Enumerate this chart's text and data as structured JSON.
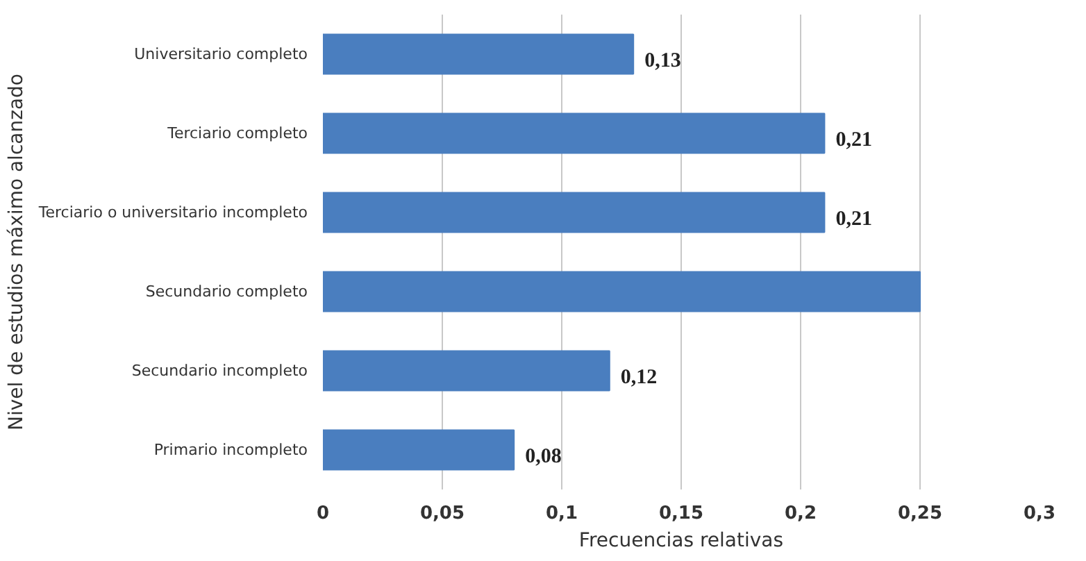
{
  "chart_data": {
    "type": "bar",
    "orientation": "horizontal",
    "xlabel": "Frecuencias relativas",
    "ylabel": "Nivel de estudios máximo alcanzado",
    "categories": [
      "Universitario completo",
      "Terciario completo",
      "Terciario o universitario incompleto",
      "Secundario completo",
      "Secundario incompleto",
      "Primario incompleto"
    ],
    "values": [
      0.13,
      0.21,
      0.21,
      0.25,
      0.12,
      0.08
    ],
    "value_labels": [
      "0,13",
      "0,21",
      "0,21",
      null,
      "0,12",
      "0,08"
    ],
    "color": "#4a7ebf",
    "xlim": [
      0,
      0.3
    ],
    "xticks": [
      0,
      {
        "value": 0.05,
        "label": "0,05"
      },
      {
        "value": 0.1,
        "label": "0,1"
      },
      {
        "value": 0.15,
        "label": "0,15"
      },
      {
        "value": 0.2,
        "label": "0,2"
      },
      {
        "value": 0.25,
        "label": "0,25"
      },
      {
        "value": 0.3,
        "label": "0,3"
      }
    ],
    "grid": "x"
  }
}
